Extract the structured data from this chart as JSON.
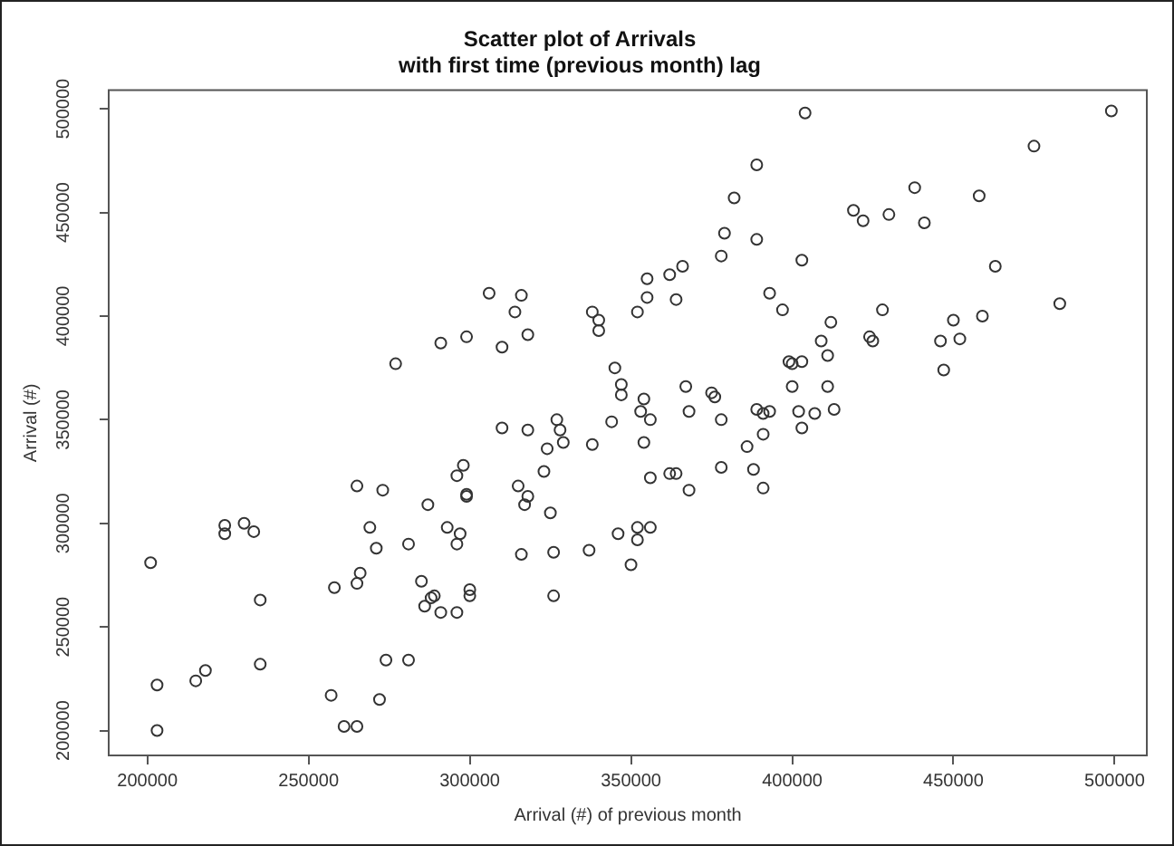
{
  "chart_data": {
    "type": "scatter",
    "title": "Scatter plot of Arrivals\nwith first time (previous month) lag",
    "xlabel": "Arrival (#) of previous month",
    "ylabel": "Arrival (#)",
    "xlim": [
      188000,
      510000
    ],
    "ylim": [
      188000,
      509000
    ],
    "xticks": [
      200000,
      250000,
      300000,
      350000,
      400000,
      450000,
      500000
    ],
    "yticks": [
      200000,
      250000,
      300000,
      350000,
      400000,
      450000,
      500000
    ],
    "grid": false,
    "legend": false,
    "marker": "circle",
    "series": [
      {
        "color": "#333333",
        "x": [
          306000,
          316000,
          314000,
          338000,
          340000,
          340000,
          318000,
          299000,
          291000,
          310000,
          277000,
          345000,
          347000,
          347000,
          344000,
          327000,
          328000,
          329000,
          310000,
          318000,
          324000,
          338000,
          323000,
          298000,
          296000,
          299000,
          299000,
          315000,
          318000,
          317000,
          325000,
          287000,
          265000,
          273000,
          224000,
          230000,
          224000,
          233000,
          201000,
          269000,
          271000,
          281000,
          293000,
          297000,
          296000,
          316000,
          326000,
          337000,
          346000,
          258000,
          265000,
          266000,
          235000,
          285000,
          286000,
          288000,
          289000,
          291000,
          296000,
          300000,
          300000,
          326000,
          235000,
          218000,
          215000,
          203000,
          203000,
          274000,
          281000,
          257000,
          272000,
          261000,
          265000,
          404000,
          499000,
          475000,
          389000,
          438000,
          458000,
          382000,
          419000,
          422000,
          430000,
          441000,
          379000,
          389000,
          378000,
          403000,
          463000,
          355000,
          362000,
          366000,
          355000,
          364000,
          352000,
          393000,
          397000,
          483000,
          428000,
          450000,
          459000,
          452000,
          446000,
          447000,
          412000,
          409000,
          411000,
          424000,
          425000,
          399000,
          400000,
          403000,
          354000,
          353000,
          356000,
          354000,
          367000,
          368000,
          375000,
          376000,
          378000,
          400000,
          411000,
          389000,
          391000,
          393000,
          402000,
          407000,
          413000,
          403000,
          391000,
          386000,
          356000,
          362000,
          364000,
          368000,
          378000,
          388000,
          391000,
          352000,
          352000,
          356000,
          350000
        ],
        "values": [
          411000,
          410000,
          402000,
          402000,
          398000,
          393000,
          391000,
          390000,
          387000,
          385000,
          377000,
          375000,
          367000,
          362000,
          349000,
          350000,
          345000,
          339000,
          346000,
          345000,
          336000,
          338000,
          325000,
          328000,
          323000,
          314000,
          313000,
          318000,
          313000,
          309000,
          305000,
          309000,
          318000,
          316000,
          299000,
          300000,
          295000,
          296000,
          281000,
          298000,
          288000,
          290000,
          298000,
          295000,
          290000,
          285000,
          286000,
          287000,
          295000,
          269000,
          271000,
          276000,
          263000,
          272000,
          260000,
          264000,
          265000,
          257000,
          257000,
          268000,
          265000,
          265000,
          232000,
          229000,
          224000,
          222000,
          200000,
          234000,
          234000,
          217000,
          215000,
          202000,
          202000,
          498000,
          499000,
          482000,
          473000,
          462000,
          458000,
          457000,
          451000,
          446000,
          449000,
          445000,
          440000,
          437000,
          429000,
          427000,
          424000,
          418000,
          420000,
          424000,
          409000,
          408000,
          402000,
          411000,
          403000,
          406000,
          403000,
          398000,
          400000,
          389000,
          388000,
          374000,
          397000,
          388000,
          381000,
          390000,
          388000,
          378000,
          377000,
          378000,
          360000,
          354000,
          350000,
          339000,
          366000,
          354000,
          363000,
          361000,
          350000,
          366000,
          366000,
          355000,
          353000,
          354000,
          354000,
          353000,
          355000,
          346000,
          343000,
          337000,
          322000,
          324000,
          324000,
          316000,
          327000,
          326000,
          317000,
          298000,
          292000,
          298000,
          280000
        ]
      }
    ]
  }
}
